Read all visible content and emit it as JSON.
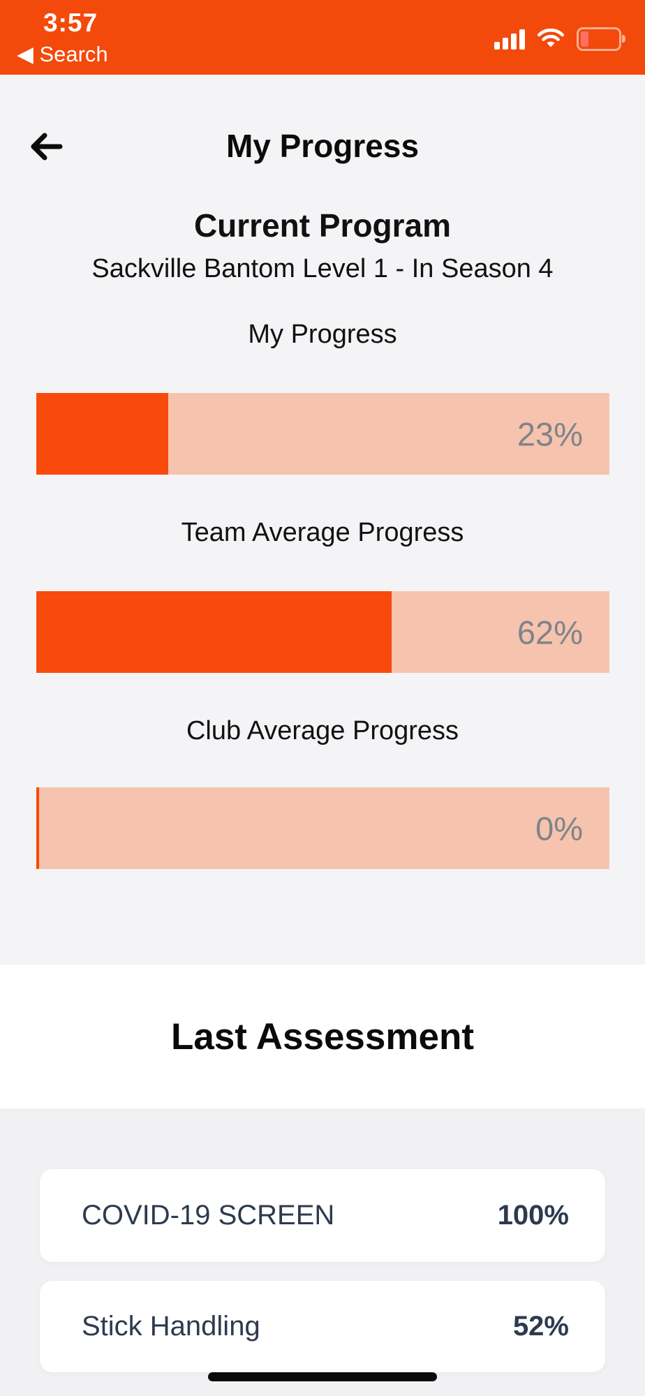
{
  "status_bar": {
    "time": "3:57",
    "back_label": "◀ Search",
    "icons": [
      "signal-bars-icon",
      "wifi-icon",
      "battery-low-icon"
    ]
  },
  "header": {
    "title": "My Progress",
    "back_icon": "arrow-left-icon"
  },
  "current_program": {
    "heading": "Current Program",
    "program_name": "Sackville Bantom Level 1 - In Season 4"
  },
  "progress_sections": [
    {
      "label": "My Progress",
      "percent": 23,
      "display": "23%"
    },
    {
      "label": "Team Average Progress",
      "percent": 62,
      "display": "62%"
    },
    {
      "label": "Club Average Progress",
      "percent": 0,
      "display": "0%"
    }
  ],
  "last_assessment": {
    "heading": "Last Assessment",
    "items": [
      {
        "name": "COVID-19 SCREEN",
        "score": "100%"
      },
      {
        "name": "Stick Handling",
        "score": "52%"
      }
    ]
  },
  "colors": {
    "status_bar_bg": "#F3490B",
    "bar_fill": "#F84A0C",
    "bar_track": "#F6C3AE",
    "page_bg": "#F4F4F6",
    "bottom_section_bg": "#F1F1F4",
    "card_text": "#2D3A4E",
    "bar_percent_text": "#7E8488",
    "battery_level": "#FD7163"
  }
}
